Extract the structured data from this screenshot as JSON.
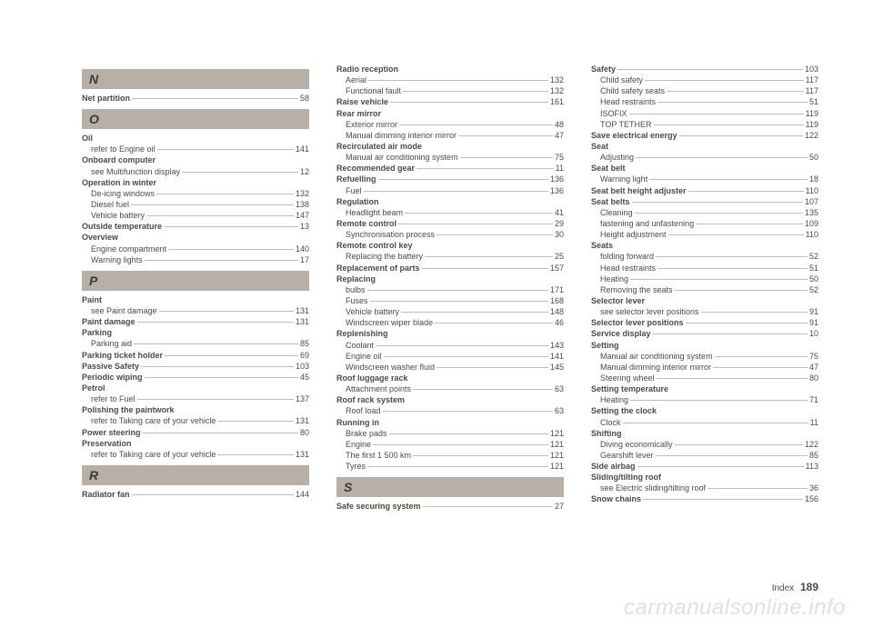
{
  "footer": {
    "label": "Index",
    "page": "189"
  },
  "watermark": "carmanualsonline.info",
  "columns": [
    {
      "groups": [
        {
          "header": "N",
          "entries": [
            {
              "label": "Net partition",
              "page": "58",
              "bold": true
            }
          ]
        },
        {
          "header": "O",
          "entries": [
            {
              "label": "Oil",
              "bold": true,
              "nopage": true
            },
            {
              "label": "refer to Engine oil",
              "page": "141",
              "indent": true
            },
            {
              "label": "Onboard computer",
              "bold": true,
              "nopage": true
            },
            {
              "label": "see Multifunction display",
              "page": "12",
              "indent": true
            },
            {
              "label": "Operation in winter",
              "bold": true,
              "nopage": true
            },
            {
              "label": "De-icing windows",
              "page": "132",
              "indent": true
            },
            {
              "label": "Diesel fuel",
              "page": "138",
              "indent": true
            },
            {
              "label": "Vehicle battery",
              "page": "147",
              "indent": true
            },
            {
              "label": "Outside temperature",
              "page": "13",
              "bold": true
            },
            {
              "label": "Overview",
              "bold": true,
              "nopage": true
            },
            {
              "label": "Engine compartment",
              "page": "140",
              "indent": true
            },
            {
              "label": "Warning lights",
              "page": "17",
              "indent": true
            }
          ]
        },
        {
          "header": "P",
          "entries": [
            {
              "label": "Paint",
              "bold": true,
              "nopage": true
            },
            {
              "label": "see Paint damage",
              "page": "131",
              "indent": true
            },
            {
              "label": "Paint damage",
              "page": "131",
              "bold": true
            },
            {
              "label": "Parking",
              "bold": true,
              "nopage": true
            },
            {
              "label": "Parking aid",
              "page": "85",
              "indent": true
            },
            {
              "label": "Parking ticket holder",
              "page": "69",
              "bold": true
            },
            {
              "label": "Passive Safety",
              "page": "103",
              "bold": true
            },
            {
              "label": "Periodic wiping",
              "page": "45",
              "bold": true
            },
            {
              "label": "Petrol",
              "bold": true,
              "nopage": true
            },
            {
              "label": "refer to Fuel",
              "page": "137",
              "indent": true
            },
            {
              "label": "Polishing the paintwork",
              "bold": true,
              "nopage": true
            },
            {
              "label": "refer to Taking care of your vehicle",
              "page": "131",
              "indent": true
            },
            {
              "label": "Power steering",
              "page": "80",
              "bold": true
            },
            {
              "label": "Preservation",
              "bold": true,
              "nopage": true
            },
            {
              "label": "refer to Taking care of your vehicle",
              "page": "131",
              "indent": true
            }
          ]
        },
        {
          "header": "R",
          "entries": [
            {
              "label": "Radiator fan",
              "page": "144",
              "bold": true
            }
          ]
        }
      ]
    },
    {
      "groups": [
        {
          "entries": [
            {
              "label": "Radio reception",
              "bold": true,
              "nopage": true
            },
            {
              "label": "Aerial",
              "page": "132",
              "indent": true
            },
            {
              "label": "Functional fault",
              "page": "132",
              "indent": true
            },
            {
              "label": "Raise vehicle",
              "page": "161",
              "bold": true
            },
            {
              "label": "Rear mirror",
              "bold": true,
              "nopage": true
            },
            {
              "label": "Exterior mirror",
              "page": "48",
              "indent": true
            },
            {
              "label": "Manual dimming interior mirror",
              "page": "47",
              "indent": true
            },
            {
              "label": "Recirculated air mode",
              "bold": true,
              "nopage": true
            },
            {
              "label": "Manual air conditioning system",
              "page": "75",
              "indent": true
            },
            {
              "label": "Recommended gear",
              "page": "11",
              "bold": true
            },
            {
              "label": "Refuelling",
              "page": "136",
              "bold": true
            },
            {
              "label": "Fuel",
              "page": "136",
              "indent": true
            },
            {
              "label": "Regulation",
              "bold": true,
              "nopage": true
            },
            {
              "label": "Headlight beam",
              "page": "41",
              "indent": true
            },
            {
              "label": "Remote control",
              "page": "29",
              "bold": true
            },
            {
              "label": "Synchronisation process",
              "page": "30",
              "indent": true
            },
            {
              "label": "Remote control key",
              "bold": true,
              "nopage": true
            },
            {
              "label": "Replacing the battery",
              "page": "25",
              "indent": true
            },
            {
              "label": "Replacement of parts",
              "page": "157",
              "bold": true
            },
            {
              "label": "Replacing",
              "bold": true,
              "nopage": true
            },
            {
              "label": "bulbs",
              "page": "171",
              "indent": true
            },
            {
              "label": "Fuses",
              "page": "168",
              "indent": true
            },
            {
              "label": "Vehicle battery",
              "page": "148",
              "indent": true
            },
            {
              "label": "Windscreen wiper blade",
              "page": "46",
              "indent": true
            },
            {
              "label": "Replenishing",
              "bold": true,
              "nopage": true
            },
            {
              "label": "Coolant",
              "page": "143",
              "indent": true
            },
            {
              "label": "Engine oil",
              "page": "141",
              "indent": true
            },
            {
              "label": "Windscreen washer fluid",
              "page": "145",
              "indent": true
            },
            {
              "label": "Roof luggage rack",
              "bold": true,
              "nopage": true
            },
            {
              "label": "Attachment points",
              "page": "63",
              "indent": true
            },
            {
              "label": "Roof rack system",
              "bold": true,
              "nopage": true
            },
            {
              "label": "Roof load",
              "page": "63",
              "indent": true
            },
            {
              "label": "Running in",
              "bold": true,
              "nopage": true
            },
            {
              "label": "Brake pads",
              "page": "121",
              "indent": true
            },
            {
              "label": "Engine",
              "page": "121",
              "indent": true
            },
            {
              "label": "The first 1 500 km",
              "page": "121",
              "indent": true
            },
            {
              "label": "Tyres",
              "page": "121",
              "indent": true
            }
          ]
        },
        {
          "header": "S",
          "entries": [
            {
              "label": "Safe securing system",
              "page": "27",
              "bold": true
            }
          ]
        }
      ]
    },
    {
      "groups": [
        {
          "entries": [
            {
              "label": "Safety",
              "page": "103",
              "bold": true
            },
            {
              "label": "Child safety",
              "page": "117",
              "indent": true
            },
            {
              "label": "Child safety seats",
              "page": "117",
              "indent": true
            },
            {
              "label": "Head restraints",
              "page": "51",
              "indent": true
            },
            {
              "label": "ISOFIX",
              "page": "119",
              "indent": true
            },
            {
              "label": "TOP TETHER",
              "page": "119",
              "indent": true
            },
            {
              "label": "Save electrical energy",
              "page": "122",
              "bold": true
            },
            {
              "label": "Seat",
              "bold": true,
              "nopage": true
            },
            {
              "label": "Adjusting",
              "page": "50",
              "indent": true
            },
            {
              "label": "Seat belt",
              "bold": true,
              "nopage": true
            },
            {
              "label": "Warning light",
              "page": "18",
              "indent": true
            },
            {
              "label": "Seat belt height adjuster",
              "page": "110",
              "bold": true
            },
            {
              "label": "Seat belts",
              "page": "107",
              "bold": true
            },
            {
              "label": "Cleaning",
              "page": "135",
              "indent": true
            },
            {
              "label": "fastening and unfastening",
              "page": "109",
              "indent": true
            },
            {
              "label": "Height adjustment",
              "page": "110",
              "indent": true
            },
            {
              "label": "Seats",
              "bold": true,
              "nopage": true
            },
            {
              "label": "folding forward",
              "page": "52",
              "indent": true
            },
            {
              "label": "Head restraints",
              "page": "51",
              "indent": true
            },
            {
              "label": "Heating",
              "page": "50",
              "indent": true
            },
            {
              "label": "Removing the seats",
              "page": "52",
              "indent": true
            },
            {
              "label": "Selector lever",
              "bold": true,
              "nopage": true
            },
            {
              "label": "see selector lever positions",
              "page": "91",
              "indent": true
            },
            {
              "label": "Selector lever positions",
              "page": "91",
              "bold": true
            },
            {
              "label": "Service display",
              "page": "10",
              "bold": true
            },
            {
              "label": "Setting",
              "bold": true,
              "nopage": true
            },
            {
              "label": "Manual air conditioning system",
              "page": "75",
              "indent": true
            },
            {
              "label": "Manual dimming interior mirror",
              "page": "47",
              "indent": true
            },
            {
              "label": "Steering wheel",
              "page": "80",
              "indent": true
            },
            {
              "label": "Setting temperature",
              "bold": true,
              "nopage": true
            },
            {
              "label": "Heating",
              "page": "71",
              "indent": true
            },
            {
              "label": "Setting the clock",
              "bold": true,
              "nopage": true
            },
            {
              "label": "Clock",
              "page": "11",
              "indent": true
            },
            {
              "label": "Shifting",
              "bold": true,
              "nopage": true
            },
            {
              "label": "Diving economically",
              "page": "122",
              "indent": true
            },
            {
              "label": "Gearshift lever",
              "page": "85",
              "indent": true
            },
            {
              "label": "Side airbag",
              "page": "113",
              "bold": true
            },
            {
              "label": "Sliding/tilting roof",
              "bold": true,
              "nopage": true
            },
            {
              "label": "see Electric sliding/tilting roof",
              "page": "36",
              "indent": true
            },
            {
              "label": "Snow chains",
              "page": "156",
              "bold": true
            }
          ]
        }
      ]
    }
  ]
}
